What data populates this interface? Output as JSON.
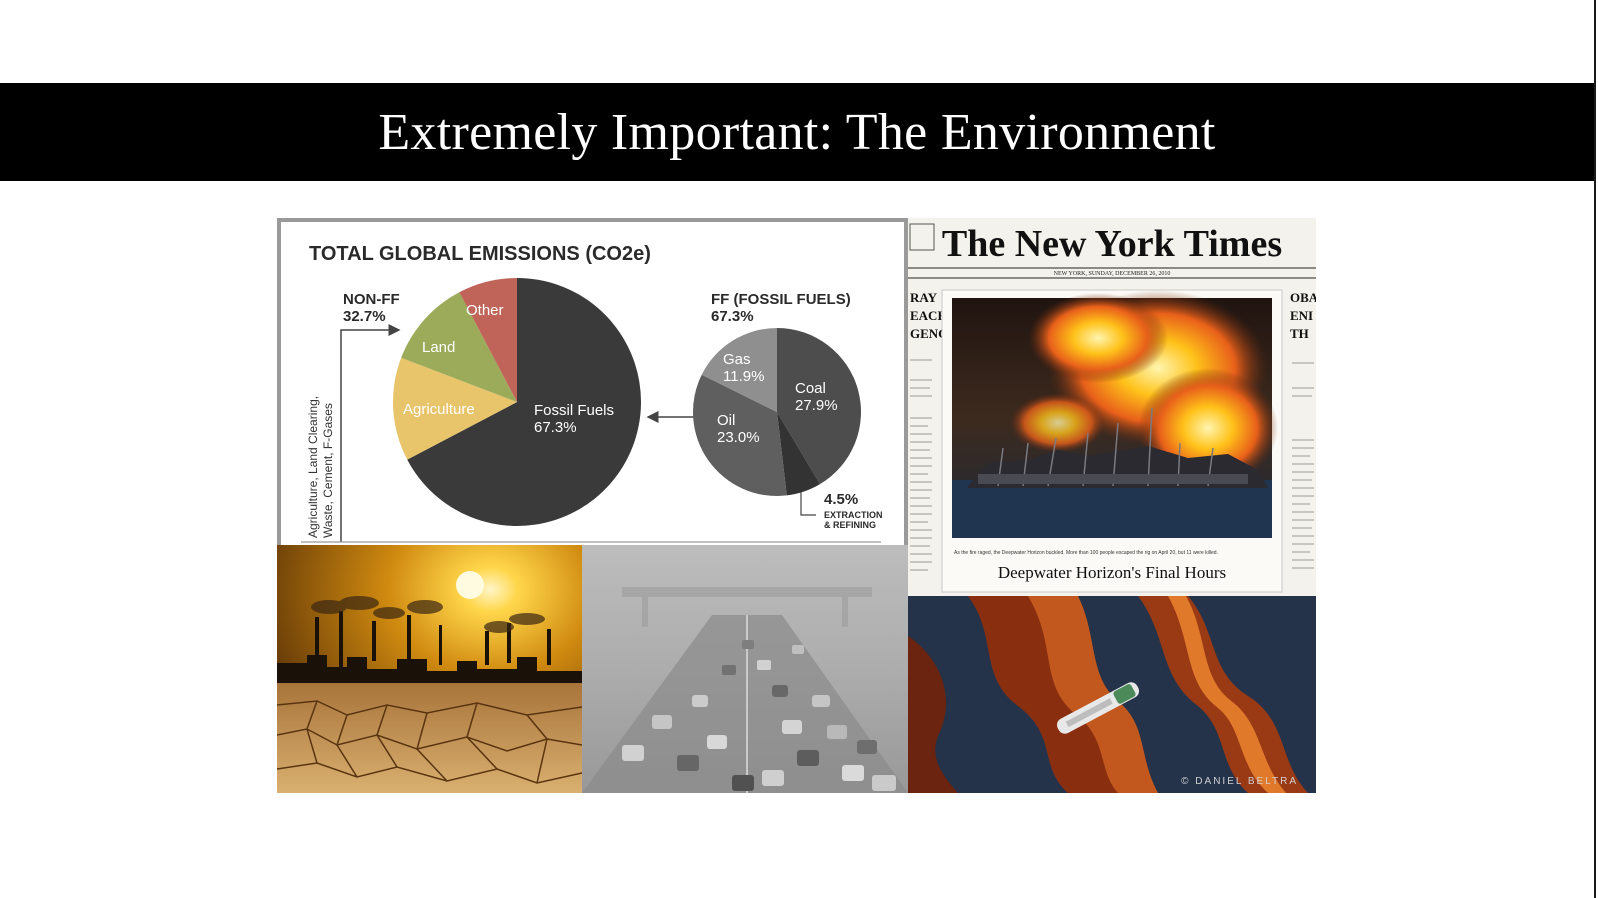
{
  "slide": {
    "title": "Extremely Important: The Environment"
  },
  "emissions_graphic": {
    "heading": "TOTAL GLOBAL EMISSIONS (CO2e)",
    "non_ff_label": "NON-FF",
    "non_ff_value": "32.7%",
    "ff_label": "FF (FOSSIL FUELS)",
    "ff_value": "67.3%",
    "vertical_note_line1": "Agriculture, Land Clearing,",
    "vertical_note_line2": "Waste, Cement, F-Gases",
    "extraction_value": "4.5%",
    "extraction_line1": "EXTRACTION",
    "extraction_line2": "& REFINING"
  },
  "chart_data": [
    {
      "type": "pie",
      "title": "TOTAL GLOBAL EMISSIONS (CO2e)",
      "slices": [
        {
          "label": "Fossil Fuels",
          "value": 67.3,
          "display": "67.3%",
          "color": "#3a3a3a"
        },
        {
          "label": "Agriculture",
          "value": 13.5,
          "display": "",
          "color": "#e8c46b"
        },
        {
          "label": "Land",
          "value": 11.5,
          "display": "",
          "color": "#9bab5a"
        },
        {
          "label": "Other",
          "value": 7.7,
          "display": "",
          "color": "#c0645a"
        }
      ]
    },
    {
      "type": "pie",
      "title": "FF (FOSSIL FUELS)",
      "slices": [
        {
          "label": "Coal",
          "value": 27.9,
          "display": "27.9%",
          "color": "#4d4d4d"
        },
        {
          "label": "Extraction & Refining",
          "value": 4.5,
          "display": "4.5%",
          "color": "#333333"
        },
        {
          "label": "Oil",
          "value": 23.0,
          "display": "23.0%",
          "color": "#5f5f5f"
        },
        {
          "label": "Gas",
          "value": 11.9,
          "display": "11.9%",
          "color": "#8f8f8f"
        }
      ]
    }
  ],
  "newspaper": {
    "masthead": "The New York Times",
    "dateline": "NEW YORK, SUNDAY, DECEMBER 26, 2010",
    "left_column_headline": [
      "RAY",
      "EACH",
      "GENCY"
    ],
    "right_column_headline": [
      "OBA",
      "ENI",
      "TH"
    ],
    "caption_headline": "Deepwater Horizon's Final Hours"
  },
  "spill_photo": {
    "credit": "© DANIEL BELTRA"
  },
  "colors": {
    "title_bar": "#000000",
    "chart_border": "#9a9a9a",
    "fossil_dark": "#3a3a3a"
  }
}
